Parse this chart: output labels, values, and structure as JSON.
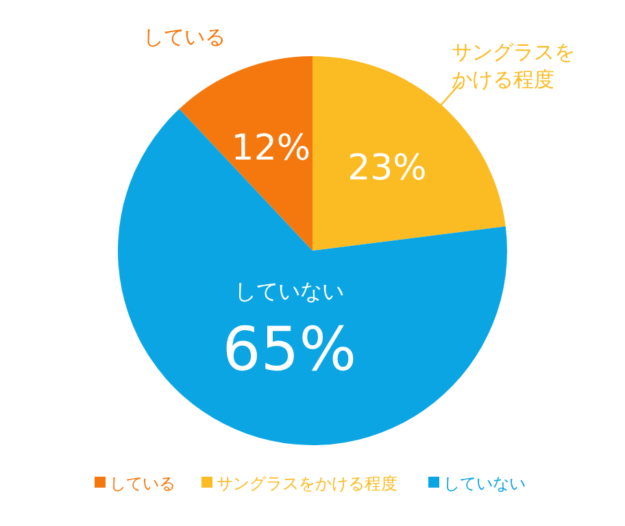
{
  "chart_data": {
    "type": "pie",
    "categories": [
      "している",
      "サングラスをかける程度",
      "していない"
    ],
    "values": [
      12,
      23,
      65
    ],
    "colors": [
      "#f5780f",
      "#fbbb22",
      "#0ca5e4"
    ],
    "value_labels": [
      "12%",
      "23%",
      "65%"
    ],
    "legend": "bottom"
  }
}
